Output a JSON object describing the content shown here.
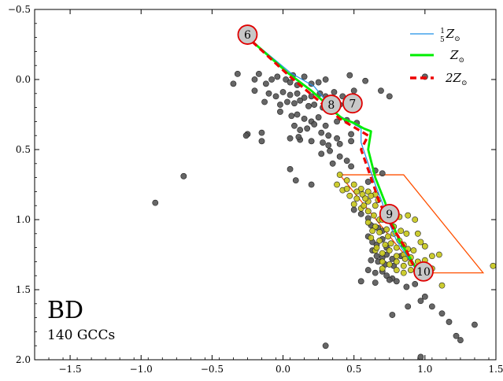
{
  "chart_data": {
    "type": "scatter",
    "title": "BD",
    "subtitle": "140 GCCs",
    "xlabel": "",
    "ylabel": "",
    "xlim": [
      -1.75,
      1.5
    ],
    "ylim": [
      2.0,
      -0.5
    ],
    "y_inverted": true,
    "x_ticks": [
      -1.5,
      -1.0,
      -0.5,
      0.0,
      0.5,
      1.0,
      1.5
    ],
    "x_tick_labels": [
      "−1.5",
      "−1.0",
      "−0.5",
      "0.0",
      "0.5",
      "1.0",
      "1.5"
    ],
    "y_ticks": [
      -0.5,
      0.0,
      0.5,
      1.0,
      1.5,
      2.0
    ],
    "y_tick_labels": [
      "−0.5",
      "0.0",
      "0.5",
      "1.0",
      "1.5",
      "2.0"
    ],
    "legend": {
      "placement": "top-right",
      "entries": [
        {
          "label": "15Z⊙",
          "label_display": [
            "1",
            "5",
            "Z",
            "⊙"
          ],
          "color": "#1f8fe8",
          "style": "solid-thin"
        },
        {
          "label": "Z⊙",
          "label_display": [
            "Z",
            "⊙"
          ],
          "color": "#00ee00",
          "style": "solid-thick"
        },
        {
          "label": "2Z⊙",
          "label_display": [
            "2Z",
            "⊙"
          ],
          "color": "#ee0000",
          "style": "dashed-thick"
        }
      ]
    },
    "colors": {
      "gray_points": "#555555",
      "yellow_points": "#c6c61a",
      "box": "#ff5000",
      "marker_fill": "#c8c8c8",
      "marker_edge": "#e00000"
    },
    "series": [
      {
        "name": "GCCs (black)",
        "color": "#555555",
        "points": [
          [
            -0.35,
            0.03
          ],
          [
            -0.32,
            -0.04
          ],
          [
            -0.2,
            0.0
          ],
          [
            -0.17,
            -0.04
          ],
          [
            -0.12,
            0.03
          ],
          [
            -0.08,
            0.0
          ],
          [
            -0.04,
            -0.02
          ],
          [
            0.02,
            0.0
          ],
          [
            0.05,
            0.02
          ],
          [
            0.07,
            -0.03
          ],
          [
            0.1,
            0.04
          ],
          [
            0.15,
            -0.02
          ],
          [
            0.2,
            0.03
          ],
          [
            0.25,
            0.02
          ],
          [
            0.3,
            0.0
          ],
          [
            0.47,
            -0.03
          ],
          [
            0.58,
            0.01
          ],
          [
            1.0,
            -0.02
          ],
          [
            -0.2,
            0.08
          ],
          [
            -0.1,
            0.1
          ],
          [
            -0.05,
            0.12
          ],
          [
            0.0,
            0.09
          ],
          [
            0.05,
            0.11
          ],
          [
            0.1,
            0.1
          ],
          [
            0.15,
            0.13
          ],
          [
            0.2,
            0.12
          ],
          [
            0.26,
            0.1
          ],
          [
            0.3,
            0.12
          ],
          [
            0.36,
            0.09
          ],
          [
            0.42,
            0.12
          ],
          [
            0.5,
            0.08
          ],
          [
            0.69,
            0.08
          ],
          [
            0.75,
            0.12
          ],
          [
            -0.13,
            0.16
          ],
          [
            -0.02,
            0.18
          ],
          [
            0.03,
            0.16
          ],
          [
            0.08,
            0.17
          ],
          [
            0.12,
            0.15
          ],
          [
            0.18,
            0.19
          ],
          [
            0.22,
            0.18
          ],
          [
            0.28,
            0.2
          ],
          [
            0.35,
            0.22
          ],
          [
            0.4,
            0.18
          ],
          [
            -0.02,
            0.23
          ],
          [
            0.06,
            0.26
          ],
          [
            0.1,
            0.25
          ],
          [
            0.15,
            0.28
          ],
          [
            0.2,
            0.3
          ],
          [
            0.25,
            0.27
          ],
          [
            0.3,
            0.33
          ],
          [
            0.38,
            0.3
          ],
          [
            0.45,
            0.29
          ],
          [
            0.52,
            0.31
          ],
          [
            0.08,
            0.33
          ],
          [
            0.12,
            0.36
          ],
          [
            0.17,
            0.35
          ],
          [
            0.22,
            0.32
          ],
          [
            0.27,
            0.38
          ],
          [
            0.32,
            0.4
          ],
          [
            0.38,
            0.42
          ],
          [
            0.48,
            0.39
          ],
          [
            0.12,
            0.43
          ],
          [
            0.2,
            0.44
          ],
          [
            0.28,
            0.45
          ],
          [
            0.32,
            0.47
          ],
          [
            0.4,
            0.46
          ],
          [
            0.48,
            0.44
          ],
          [
            -0.25,
            0.39
          ],
          [
            -0.26,
            0.4
          ],
          [
            -0.15,
            0.38
          ],
          [
            -0.15,
            0.44
          ],
          [
            0.05,
            0.42
          ],
          [
            0.11,
            0.41
          ],
          [
            0.27,
            0.53
          ],
          [
            0.33,
            0.51
          ],
          [
            0.4,
            0.55
          ],
          [
            0.45,
            0.58
          ],
          [
            -0.9,
            0.88
          ],
          [
            -0.7,
            0.69
          ],
          [
            0.05,
            0.64
          ],
          [
            0.09,
            0.72
          ],
          [
            0.2,
            0.75
          ],
          [
            0.35,
            0.6
          ],
          [
            0.48,
            0.62
          ],
          [
            0.65,
            0.65
          ],
          [
            0.7,
            0.67
          ],
          [
            0.6,
            0.73
          ],
          [
            0.5,
            0.93
          ],
          [
            0.55,
            0.96
          ],
          [
            0.6,
            0.99
          ],
          [
            0.7,
            0.98
          ],
          [
            0.62,
            1.04
          ],
          [
            0.67,
            1.06
          ],
          [
            0.7,
            1.08
          ],
          [
            0.6,
            1.12
          ],
          [
            0.63,
            1.16
          ],
          [
            0.66,
            1.18
          ],
          [
            0.7,
            1.14
          ],
          [
            0.73,
            1.2
          ],
          [
            0.63,
            1.22
          ],
          [
            0.66,
            1.26
          ],
          [
            0.7,
            1.27
          ],
          [
            0.73,
            1.25
          ],
          [
            0.77,
            1.28
          ],
          [
            0.83,
            1.26
          ],
          [
            0.62,
            1.29
          ],
          [
            0.67,
            1.3
          ],
          [
            0.72,
            1.32
          ],
          [
            0.78,
            1.33
          ],
          [
            0.6,
            1.36
          ],
          [
            0.65,
            1.38
          ],
          [
            0.7,
            1.37
          ],
          [
            0.73,
            1.4
          ],
          [
            0.77,
            1.42
          ],
          [
            0.55,
            1.44
          ],
          [
            0.75,
            1.43
          ],
          [
            0.8,
            1.44
          ],
          [
            0.65,
            1.45
          ],
          [
            0.87,
            1.48
          ],
          [
            0.93,
            1.46
          ],
          [
            1.0,
            1.55
          ],
          [
            0.97,
            1.58
          ],
          [
            0.88,
            1.62
          ],
          [
            0.77,
            1.68
          ],
          [
            1.05,
            1.62
          ],
          [
            1.12,
            1.67
          ],
          [
            1.17,
            1.73
          ],
          [
            1.22,
            1.83
          ],
          [
            1.25,
            1.86
          ],
          [
            1.35,
            1.75
          ],
          [
            0.3,
            1.9
          ],
          [
            0.97,
            1.98
          ]
        ]
      },
      {
        "name": "GCCs (yellow)",
        "color": "#c6c61a",
        "points": [
          [
            0.4,
            0.68
          ],
          [
            0.45,
            0.72
          ],
          [
            0.5,
            0.75
          ],
          [
            0.55,
            0.78
          ],
          [
            0.6,
            0.8
          ],
          [
            0.65,
            0.82
          ],
          [
            0.42,
            0.79
          ],
          [
            0.47,
            0.83
          ],
          [
            0.52,
            0.85
          ],
          [
            0.56,
            0.82
          ],
          [
            0.6,
            0.87
          ],
          [
            0.65,
            0.9
          ],
          [
            0.5,
            0.89
          ],
          [
            0.55,
            0.92
          ],
          [
            0.6,
            0.94
          ],
          [
            0.64,
            0.97
          ],
          [
            0.68,
            1.0
          ],
          [
            0.72,
            0.93
          ],
          [
            0.77,
            0.95
          ],
          [
            0.82,
            0.98
          ],
          [
            0.6,
            1.02
          ],
          [
            0.65,
            1.05
          ],
          [
            0.68,
            1.09
          ],
          [
            0.73,
            1.07
          ],
          [
            0.78,
            1.1
          ],
          [
            0.83,
            1.08
          ],
          [
            0.87,
            1.1
          ],
          [
            0.62,
            1.13
          ],
          [
            0.68,
            1.15
          ],
          [
            0.72,
            1.18
          ],
          [
            0.76,
            1.17
          ],
          [
            0.8,
            1.2
          ],
          [
            0.85,
            1.18
          ],
          [
            0.88,
            1.21
          ],
          [
            0.65,
            1.22
          ],
          [
            0.7,
            1.24
          ],
          [
            0.75,
            1.22
          ],
          [
            0.8,
            1.26
          ],
          [
            0.85,
            1.25
          ],
          [
            0.9,
            1.27
          ],
          [
            0.7,
            1.3
          ],
          [
            0.75,
            1.32
          ],
          [
            0.8,
            1.3
          ],
          [
            0.85,
            1.33
          ],
          [
            0.9,
            1.31
          ],
          [
            0.95,
            1.3
          ],
          [
            1.0,
            1.29
          ],
          [
            1.05,
            1.26
          ],
          [
            1.1,
            1.25
          ],
          [
            0.8,
            1.36
          ],
          [
            0.85,
            1.38
          ],
          [
            0.9,
            1.36
          ],
          [
            0.95,
            1.39
          ],
          [
            1.05,
            1.35
          ],
          [
            1.12,
            1.47
          ],
          [
            1.48,
            1.33
          ],
          [
            0.38,
            0.75
          ],
          [
            0.45,
            0.78
          ],
          [
            0.52,
            0.8
          ],
          [
            0.58,
            0.85
          ],
          [
            0.62,
            0.83
          ],
          [
            0.67,
            0.86
          ],
          [
            0.57,
            0.9
          ],
          [
            0.66,
            1.2
          ],
          [
            0.7,
            1.35
          ],
          [
            0.74,
            1.12
          ],
          [
            0.82,
            1.15
          ],
          [
            0.86,
            1.28
          ],
          [
            0.92,
            1.22
          ],
          [
            0.78,
            1.05
          ],
          [
            0.88,
            0.97
          ],
          [
            0.93,
            1.0
          ],
          [
            0.95,
            1.1
          ],
          [
            1.0,
            1.19
          ],
          [
            0.97,
            1.16
          ],
          [
            0.7,
            1.0
          ],
          [
            0.63,
            1.08
          ]
        ]
      }
    ],
    "tracks": [
      {
        "name": "1/5 Z⊙",
        "color": "#1f8fe8",
        "points": [
          [
            -0.27,
            -0.32
          ],
          [
            0.05,
            -0.05
          ],
          [
            0.22,
            0.05
          ],
          [
            0.3,
            0.15
          ],
          [
            0.33,
            0.2
          ],
          [
            0.4,
            0.26
          ],
          [
            0.47,
            0.3
          ],
          [
            0.55,
            0.35
          ],
          [
            0.55,
            0.45
          ],
          [
            0.6,
            0.6
          ],
          [
            0.65,
            0.75
          ],
          [
            0.7,
            0.88
          ],
          [
            0.73,
            0.98
          ],
          [
            0.8,
            1.15
          ],
          [
            0.9,
            1.3
          ],
          [
            0.95,
            1.38
          ]
        ]
      },
      {
        "name": "Z⊙",
        "color": "#00ee00",
        "points": [
          [
            -0.27,
            -0.32
          ],
          [
            0.03,
            -0.05
          ],
          [
            0.2,
            0.08
          ],
          [
            0.3,
            0.17
          ],
          [
            0.36,
            0.23
          ],
          [
            0.42,
            0.28
          ],
          [
            0.5,
            0.31
          ],
          [
            0.57,
            0.35
          ],
          [
            0.62,
            0.37
          ],
          [
            0.6,
            0.5
          ],
          [
            0.65,
            0.7
          ],
          [
            0.72,
            0.88
          ],
          [
            0.75,
            0.98
          ],
          [
            0.82,
            1.15
          ],
          [
            0.88,
            1.25
          ],
          [
            0.96,
            1.38
          ]
        ]
      },
      {
        "name": "2Z⊙",
        "color": "#ee0000",
        "points": [
          [
            -0.27,
            -0.32
          ],
          [
            0.05,
            -0.02
          ],
          [
            0.25,
            0.15
          ],
          [
            0.33,
            0.22
          ],
          [
            0.4,
            0.28
          ],
          [
            0.5,
            0.34
          ],
          [
            0.6,
            0.4
          ],
          [
            0.55,
            0.5
          ],
          [
            0.62,
            0.7
          ],
          [
            0.68,
            0.88
          ],
          [
            0.73,
            0.98
          ],
          [
            0.8,
            1.1
          ],
          [
            0.86,
            1.2
          ],
          [
            0.92,
            1.33
          ],
          [
            0.96,
            1.38
          ]
        ]
      }
    ],
    "box": {
      "name": "selection region",
      "color": "#ff5000",
      "vertices": [
        [
          0.4,
          0.68
        ],
        [
          0.85,
          0.68
        ],
        [
          1.41,
          1.38
        ],
        [
          0.96,
          1.38
        ]
      ]
    },
    "age_markers": [
      {
        "label": "6",
        "x": -0.25,
        "y": -0.32
      },
      {
        "label": "7",
        "x": 0.49,
        "y": 0.17
      },
      {
        "label": "8",
        "x": 0.34,
        "y": 0.18
      },
      {
        "label": "9",
        "x": 0.75,
        "y": 0.96
      },
      {
        "label": "10",
        "x": 0.99,
        "y": 1.37
      }
    ]
  }
}
